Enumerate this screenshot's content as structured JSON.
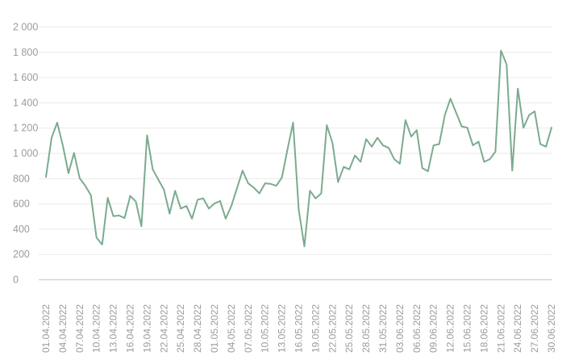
{
  "chart_data": {
    "type": "line",
    "title": "",
    "xlabel": "",
    "ylabel": "",
    "legend_visible": false,
    "grid": "horizontal",
    "ylim": [
      0,
      2000
    ],
    "y_ticks": [
      0,
      200,
      400,
      600,
      800,
      1000,
      1200,
      1400,
      1600,
      1800,
      2000
    ],
    "y_tick_labels": [
      "0",
      "200",
      "400",
      "600",
      "800",
      "1 000",
      "1 200",
      "1 400",
      "1 600",
      "1 800",
      "2 000"
    ],
    "x_tick_step_days": 3,
    "x_tick_labels": [
      "01.04.2022",
      "04.04.2022",
      "07.04.2022",
      "10.04.2022",
      "13.04.2022",
      "16.04.2022",
      "19.04.2022",
      "22.04.2022",
      "25.04.2022",
      "28.04.2022",
      "01.05.2022",
      "04.05.2022",
      "07.05.2022",
      "10.05.2022",
      "13.05.2022",
      "16.05.2022",
      "19.05.2022",
      "22.05.2022",
      "25.05.2022",
      "28.05.2022",
      "31.05.2022",
      "03.06.2022",
      "06.06.2022",
      "09.06.2022",
      "12.06.2022",
      "15.06.2022",
      "18.06.2022",
      "21.06.2022",
      "24.06.2022",
      "27.06.2022",
      "30.06.2022"
    ],
    "dates": [
      "01.04.2022",
      "02.04.2022",
      "03.04.2022",
      "04.04.2022",
      "05.04.2022",
      "06.04.2022",
      "07.04.2022",
      "08.04.2022",
      "09.04.2022",
      "10.04.2022",
      "11.04.2022",
      "12.04.2022",
      "13.04.2022",
      "14.04.2022",
      "15.04.2022",
      "16.04.2022",
      "17.04.2022",
      "18.04.2022",
      "19.04.2022",
      "20.04.2022",
      "21.04.2022",
      "22.04.2022",
      "23.04.2022",
      "24.04.2022",
      "25.04.2022",
      "26.04.2022",
      "27.04.2022",
      "28.04.2022",
      "29.04.2022",
      "30.04.2022",
      "01.05.2022",
      "02.05.2022",
      "03.05.2022",
      "04.05.2022",
      "05.05.2022",
      "06.05.2022",
      "07.05.2022",
      "08.05.2022",
      "09.05.2022",
      "10.05.2022",
      "11.05.2022",
      "12.05.2022",
      "13.05.2022",
      "14.05.2022",
      "15.05.2022",
      "16.05.2022",
      "17.05.2022",
      "18.05.2022",
      "19.05.2022",
      "20.05.2022",
      "21.05.2022",
      "22.05.2022",
      "23.05.2022",
      "24.05.2022",
      "25.05.2022",
      "26.05.2022",
      "27.05.2022",
      "28.05.2022",
      "29.05.2022",
      "30.05.2022",
      "31.05.2022",
      "01.06.2022",
      "02.06.2022",
      "03.06.2022",
      "04.06.2022",
      "05.06.2022",
      "06.06.2022",
      "07.06.2022",
      "08.06.2022",
      "09.06.2022",
      "10.06.2022",
      "11.06.2022",
      "12.06.2022",
      "13.06.2022",
      "14.06.2022",
      "15.06.2022",
      "16.06.2022",
      "17.06.2022",
      "18.06.2022",
      "19.06.2022",
      "20.06.2022",
      "21.06.2022",
      "22.06.2022",
      "23.06.2022",
      "24.06.2022",
      "25.06.2022",
      "26.06.2022",
      "27.06.2022",
      "28.06.2022",
      "29.06.2022",
      "30.06.2022"
    ],
    "values": [
      810,
      1120,
      1240,
      1060,
      840,
      1000,
      800,
      740,
      665,
      330,
      275,
      645,
      500,
      505,
      485,
      660,
      615,
      420,
      1140,
      870,
      790,
      710,
      520,
      700,
      560,
      580,
      480,
      630,
      640,
      560,
      600,
      620,
      480,
      580,
      720,
      860,
      760,
      725,
      680,
      760,
      755,
      740,
      805,
      1030,
      1240,
      550,
      260,
      700,
      640,
      680,
      1220,
      1080,
      770,
      890,
      870,
      980,
      930,
      1110,
      1050,
      1120,
      1060,
      1040,
      950,
      915,
      1260,
      1130,
      1180,
      880,
      855,
      1060,
      1070,
      1300,
      1430,
      1320,
      1210,
      1200,
      1060,
      1090,
      930,
      950,
      1010,
      1810,
      1700,
      860,
      1510,
      1200,
      1300,
      1330,
      1070,
      1050,
      1200
    ],
    "colors": {
      "line": "#7bab8e",
      "grid": "#e9e9e9",
      "axis": "#d6d6d6",
      "label": "#9b9b9b",
      "background": "#ffffff"
    }
  }
}
